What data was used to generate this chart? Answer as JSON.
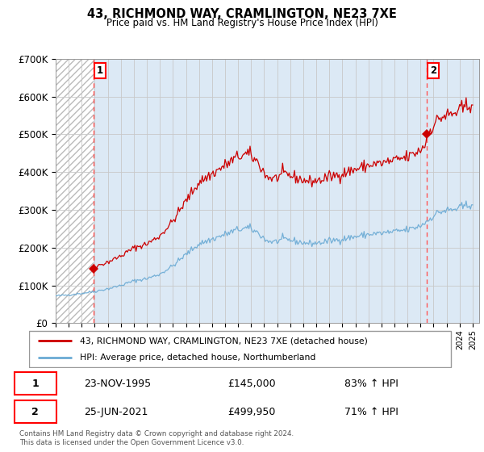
{
  "title": "43, RICHMOND WAY, CRAMLINGTON, NE23 7XE",
  "subtitle": "Price paid vs. HM Land Registry's House Price Index (HPI)",
  "ylim": [
    0,
    700000
  ],
  "yticks": [
    0,
    100000,
    200000,
    300000,
    400000,
    500000,
    600000,
    700000
  ],
  "ytick_labels": [
    "£0",
    "£100K",
    "£200K",
    "£300K",
    "£400K",
    "£500K",
    "£600K",
    "£700K"
  ],
  "xmin": 1993.0,
  "xmax": 2025.5,
  "sale1_date": 1995.917,
  "sale1_price": 145000,
  "sale2_date": 2021.49,
  "sale2_price": 499950,
  "legend_line1": "43, RICHMOND WAY, CRAMLINGTON, NE23 7XE (detached house)",
  "legend_line2": "HPI: Average price, detached house, Northumberland",
  "table_row1": [
    "1",
    "23-NOV-1995",
    "£145,000",
    "83% ↑ HPI"
  ],
  "table_row2": [
    "2",
    "25-JUN-2021",
    "£499,950",
    "71% ↑ HPI"
  ],
  "footnote": "Contains HM Land Registry data © Crown copyright and database right 2024.\nThis data is licensed under the Open Government Licence v3.0.",
  "hpi_color": "#6aaad4",
  "price_color": "#cc0000",
  "bg_blue": "#dce9f5",
  "bg_hatch_color": "#bbbbbb",
  "vline_color": "#ff5555",
  "grid_color": "#c8c8c8",
  "hatch_region_end": 1995.917
}
